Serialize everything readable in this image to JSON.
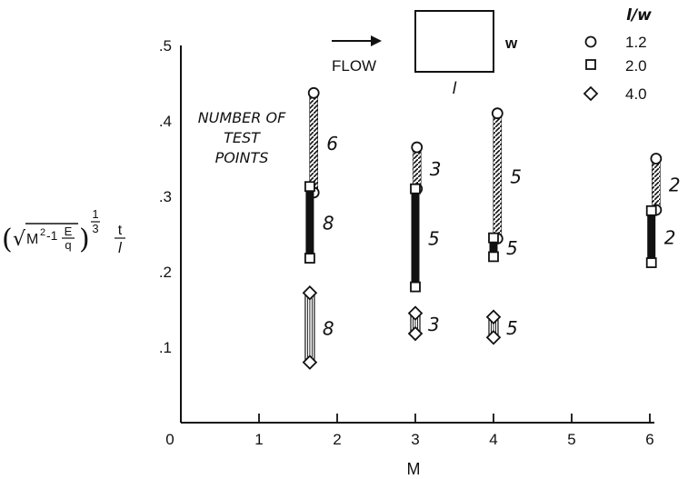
{
  "chart_data": {
    "type": "scatter",
    "xlabel": "M",
    "ylabel_prefix": "(√M",
    "ylabel_sup": "2",
    "ylabel_mid": "-1",
    "ylabel_frac_num": "E",
    "ylabel_frac_den": "q",
    "ylabel_exp_num": "1",
    "ylabel_exp_den": "3",
    "ylabel_t": "t",
    "ylabel_l": "l",
    "xlim": [
      0,
      6.4
    ],
    "ylim": [
      0,
      0.5
    ],
    "x_ticks": [
      {
        "value": 0,
        "label": "0"
      },
      {
        "value": 1,
        "label": "1"
      },
      {
        "value": 2,
        "label": "2"
      },
      {
        "value": 3,
        "label": "3"
      },
      {
        "value": 4,
        "label": "4"
      },
      {
        "value": 5,
        "label": "5"
      },
      {
        "value": 6,
        "label": "6"
      }
    ],
    "y_ticks": [
      {
        "value": 0.1,
        "label": ".1"
      },
      {
        "value": 0.2,
        "label": ".2"
      },
      {
        "value": 0.3,
        "label": ".3"
      },
      {
        "value": 0.4,
        "label": ".4"
      },
      {
        "value": 0.5,
        "label": ".5"
      }
    ],
    "legend_title": "l/w",
    "legend_placement": "top-right",
    "series": [
      {
        "name": "1.2",
        "marker": "circle",
        "fill": "hatched",
        "ranges": [
          {
            "x": 1.7,
            "y_min": 0.305,
            "y_max": 0.437,
            "count": "6"
          },
          {
            "x": 3.02,
            "y_min": 0.31,
            "y_max": 0.365,
            "count": "3"
          },
          {
            "x": 4.05,
            "y_min": 0.244,
            "y_max": 0.41,
            "count": "5"
          },
          {
            "x": 6.08,
            "y_min": 0.282,
            "y_max": 0.35,
            "count": "2"
          }
        ]
      },
      {
        "name": "2.0",
        "marker": "square",
        "fill": "solid",
        "ranges": [
          {
            "x": 1.65,
            "y_min": 0.218,
            "y_max": 0.313,
            "count": "8"
          },
          {
            "x": 3.0,
            "y_min": 0.18,
            "y_max": 0.31,
            "count": "5"
          },
          {
            "x": 4.0,
            "y_min": 0.22,
            "y_max": 0.245,
            "count": "5"
          },
          {
            "x": 6.02,
            "y_min": 0.212,
            "y_max": 0.281,
            "count": "2"
          }
        ]
      },
      {
        "name": "4.0",
        "marker": "diamond",
        "fill": "lined",
        "ranges": [
          {
            "x": 1.65,
            "y_min": 0.08,
            "y_max": 0.172,
            "count": "8"
          },
          {
            "x": 3.0,
            "y_min": 0.118,
            "y_max": 0.145,
            "count": "3"
          },
          {
            "x": 4.0,
            "y_min": 0.113,
            "y_max": 0.14,
            "count": "5"
          }
        ]
      }
    ],
    "annotations": {
      "number_of_test_points": [
        "NUMBER OF",
        "TEST",
        "POINTS"
      ],
      "flow_label": "FLOW",
      "plate_width_label": "w",
      "plate_length_label": "l"
    }
  }
}
